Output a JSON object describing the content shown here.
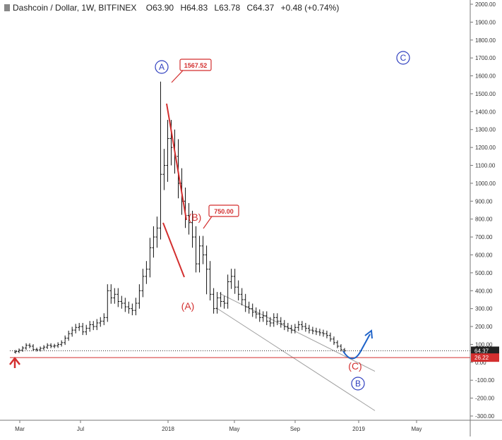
{
  "header": {
    "symbol": "Dashcoin / Dollar, 1W, BITFINEX",
    "open": "O63.90",
    "high": "H64.83",
    "low": "L63.78",
    "close": "C64.37",
    "change": "+0.48 (+0.74%)"
  },
  "colors": {
    "candles": "#111111",
    "wave_red": "#d32f2f",
    "wave_blue": "#2f3fbf",
    "channel": "#9e9e9e",
    "price_line": "#333333",
    "support_line": "#d32f2f",
    "arrow_blue": "#1e63c9"
  },
  "chart_data": {
    "type": "candlestick",
    "y_ticks": [
      "2000.00",
      "1900.00",
      "1800.00",
      "1700.00",
      "1600.00",
      "1500.00",
      "1400.00",
      "1300.00",
      "1200.00",
      "1100.00",
      "1000.00",
      "900.00",
      "800.00",
      "700.00",
      "600.00",
      "500.00",
      "400.00",
      "300.00",
      "200.00",
      "100.00",
      "0.00",
      "-100.00",
      "-200.00",
      "-300.00"
    ],
    "ylim": [
      -300,
      2000
    ],
    "x_ticks": [
      "Mar",
      "Jul",
      "2018",
      "May",
      "Sep",
      "2019",
      "May"
    ],
    "last_price": "64.37",
    "support_level": "26.22",
    "callouts": [
      {
        "label": "1567.52",
        "price": 1567.52
      },
      {
        "label": "750.00",
        "price": 750.0
      }
    ],
    "wave_labels": [
      {
        "text": "A",
        "style": "circled",
        "color": "blue"
      },
      {
        "text": "C",
        "style": "circled",
        "color": "blue"
      },
      {
        "text": "B",
        "style": "circled",
        "color": "blue"
      },
      {
        "text": "(A)",
        "style": "plain",
        "color": "red"
      },
      {
        "text": "(B)",
        "style": "plain",
        "color": "red"
      },
      {
        "text": "(C)",
        "style": "plain",
        "color": "red"
      }
    ],
    "series": [
      {
        "close": [
          60,
          68,
          80,
          95,
          90,
          72,
          70,
          78,
          85,
          95,
          90,
          92,
          100,
          110,
          135,
          160,
          180,
          195,
          200,
          170,
          190,
          210,
          200,
          220,
          230,
          250,
          400,
          360,
          380,
          340,
          330,
          310,
          300,
          290,
          330,
          400,
          480,
          520,
          640,
          700,
          750,
          1050,
          1100,
          1250,
          1200,
          1150,
          1000,
          900,
          820,
          780,
          700,
          550,
          650,
          600,
          520,
          380,
          300,
          360,
          340,
          330,
          450,
          480,
          420,
          380,
          350,
          310,
          300,
          280,
          270,
          250,
          260,
          230,
          220,
          250,
          230,
          215,
          200,
          190,
          180,
          195,
          210,
          200,
          190,
          180,
          175,
          170,
          165,
          160,
          150,
          130,
          110,
          90,
          70,
          64.37
        ]
      }
    ]
  }
}
